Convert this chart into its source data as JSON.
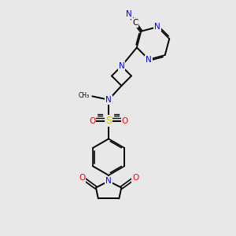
{
  "background_color": "#e8e8e8",
  "bond_color": "#000000",
  "n_color": "#0000ff",
  "o_color": "#ff0000",
  "s_color": "#c8c800",
  "figsize": [
    3.0,
    3.0
  ],
  "dpi": 100,
  "xlim": [
    0,
    10
  ],
  "ylim": [
    0,
    10
  ]
}
